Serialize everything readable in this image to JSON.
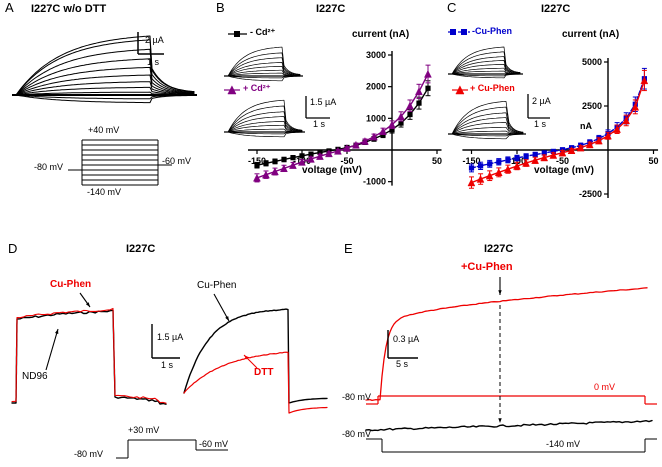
{
  "colors": {
    "red": "#ee0000",
    "blue": "#0000cc",
    "purple": "#800080",
    "black": "#000000"
  },
  "panels": {
    "a": {
      "letter": "A",
      "title": "I227C w/o DTT",
      "scale_v": "2 µA",
      "scale_h": "1 s",
      "protocol": {
        "top": "+40 mV",
        "left": "-80 mV",
        "right": "-60 mV",
        "bottom": "-140 mV"
      }
    },
    "b": {
      "letter": "B",
      "title": "I227C",
      "legend1": "- Cd²⁺",
      "legend2": "+ Cd²⁺",
      "scale_v": "1.5 µA",
      "scale_h": "1 s",
      "axis_title": "current (nA)",
      "xlabel": "voltage (mV)"
    },
    "c": {
      "letter": "C",
      "title": "I227C",
      "legend1": "-Cu-Phen",
      "legend2": "+ Cu-Phen",
      "scale_v": "2 µA",
      "scale_h": "1 s",
      "axis_title": "current (nA)",
      "y_unit": "nA",
      "xlabel": "voltage (mV)"
    },
    "d": {
      "letter": "D",
      "title": "I227C",
      "label_cuphen_red": "Cu-Phen",
      "label_nd96": "ND96",
      "label_cuphen_black": "Cu-Phen",
      "label_dtt": "DTT",
      "scale_v": "1.5 µA",
      "scale_h": "1 s",
      "protocol": {
        "top": "+30 mV",
        "left": "-80 mV",
        "right": "-60 mV"
      }
    },
    "e": {
      "letter": "E",
      "title": "I227C",
      "application_label": "+Cu-Phen",
      "scale_v": "0.3 µA",
      "scale_h": "5 s",
      "voltage_red_step": "0 mV",
      "voltage_red_hold": "-80 mV",
      "voltage_black_hold": "-80 mV",
      "voltage_black_step": "-140 mV"
    }
  },
  "chart_data": [
    {
      "panel": "B",
      "type": "scatter",
      "title": "I227C",
      "xlabel": "voltage (mV)",
      "ylabel": "current (nA)",
      "xlim": [
        -160,
        55
      ],
      "ylim": [
        -1000,
        3000
      ],
      "xticks": [
        -150,
        -100,
        -50,
        50
      ],
      "yticks": [
        3000,
        2000,
        1000,
        -1000
      ],
      "grid": false,
      "legend_position": "top-left",
      "x": [
        -150,
        -140,
        -130,
        -120,
        -110,
        -100,
        -90,
        -80,
        -70,
        -60,
        -50,
        -40,
        -30,
        -20,
        -10,
        0,
        10,
        20,
        30,
        40
      ],
      "series": [
        {
          "name": "- Cd²⁺",
          "marker": "square",
          "color": "#000000",
          "dash": null,
          "values": [
            -480,
            -420,
            -360,
            -300,
            -240,
            -185,
            -130,
            -80,
            -30,
            20,
            80,
            150,
            240,
            350,
            480,
            640,
            850,
            1120,
            1480,
            1950
          ]
        },
        {
          "name": "+ Cd²⁺",
          "marker": "triangle",
          "color": "#800080",
          "dash": null,
          "values": [
            -880,
            -780,
            -680,
            -580,
            -480,
            -380,
            -285,
            -195,
            -110,
            -30,
            60,
            160,
            280,
            420,
            590,
            800,
            1060,
            1400,
            1850,
            2400
          ]
        }
      ],
      "error_min": 40,
      "error_frac": 0.1
    },
    {
      "panel": "C",
      "type": "scatter",
      "title": "I227C",
      "xlabel": "voltage (mV)",
      "ylabel": "current (nA)",
      "xlim": [
        -160,
        55
      ],
      "ylim": [
        -2500,
        5000
      ],
      "xticks": [
        -150,
        -100,
        -50,
        50
      ],
      "yticks": [
        5000,
        2500,
        -2500
      ],
      "grid": false,
      "legend_position": "top-left",
      "x": [
        -150,
        -140,
        -130,
        -120,
        -110,
        -100,
        -90,
        -80,
        -70,
        -60,
        -50,
        -40,
        -30,
        -20,
        -10,
        0,
        10,
        20,
        30,
        40
      ],
      "series": [
        {
          "name": "-Cu-Phen",
          "marker": "square",
          "color": "#0000cc",
          "dash": "4,2",
          "values": [
            -1020,
            -900,
            -785,
            -670,
            -560,
            -455,
            -355,
            -260,
            -170,
            -80,
            15,
            125,
            260,
            430,
            650,
            930,
            1300,
            1800,
            2600,
            4050
          ]
        },
        {
          "name": "+ Cu-Phen",
          "marker": "triangle",
          "color": "#ee0000",
          "dash": null,
          "values": [
            -1850,
            -1650,
            -1460,
            -1270,
            -1090,
            -910,
            -740,
            -580,
            -430,
            -290,
            -155,
            -20,
            130,
            310,
            530,
            810,
            1180,
            1680,
            2450,
            3950
          ]
        }
      ],
      "error_min": 100,
      "error_frac": 0.12
    }
  ]
}
